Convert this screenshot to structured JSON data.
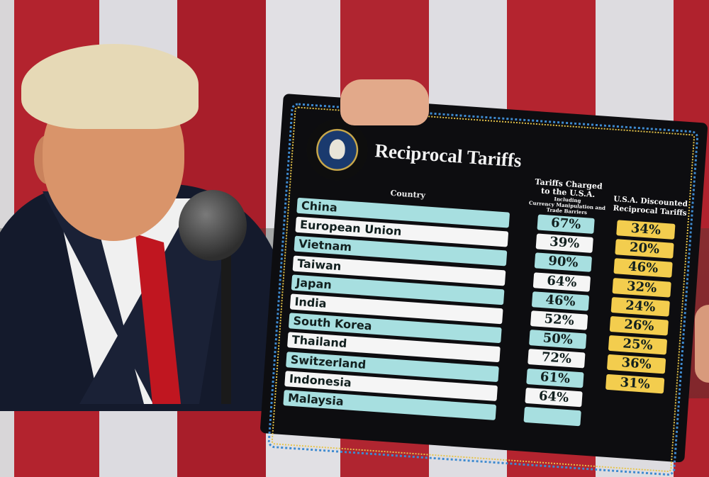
{
  "board": {
    "title": "Reciprocal Tariffs",
    "seal_text": "SEAL OF THE PRESIDENT OF THE UNITED STATES",
    "headers": {
      "country": "Country",
      "charged": "Tariffs Charged to the U.S.A.",
      "charged_sub1": "Including",
      "charged_sub2": "Currency Manipulation and Trade Barriers",
      "discounted": "U.S.A. Discounted Reciprocal Tariffs"
    },
    "rows": [
      {
        "country": "China",
        "charged": "67%",
        "discounted": "34%"
      },
      {
        "country": "European Union",
        "charged": "39%",
        "discounted": "20%"
      },
      {
        "country": "Vietnam",
        "charged": "90%",
        "discounted": "46%"
      },
      {
        "country": "Taiwan",
        "charged": "64%",
        "discounted": "32%"
      },
      {
        "country": "Japan",
        "charged": "46%",
        "discounted": "24%"
      },
      {
        "country": "India",
        "charged": "52%",
        "discounted": "26%"
      },
      {
        "country": "South Korea",
        "charged": "50%",
        "discounted": "25%"
      },
      {
        "country": "Thailand",
        "charged": "72%",
        "discounted": "36%"
      },
      {
        "country": "Switzerland",
        "charged": "61%",
        "discounted": "31%"
      },
      {
        "country": "Indonesia",
        "charged": "64%",
        "discounted": ""
      },
      {
        "country": "Malaysia",
        "charged": "",
        "discounted": ""
      }
    ]
  },
  "colors": {
    "row_teal": "#a7dfe0",
    "row_white": "#f5f5f5",
    "discount_yellow": "#f3cd4e",
    "board": "#0d0d10"
  }
}
